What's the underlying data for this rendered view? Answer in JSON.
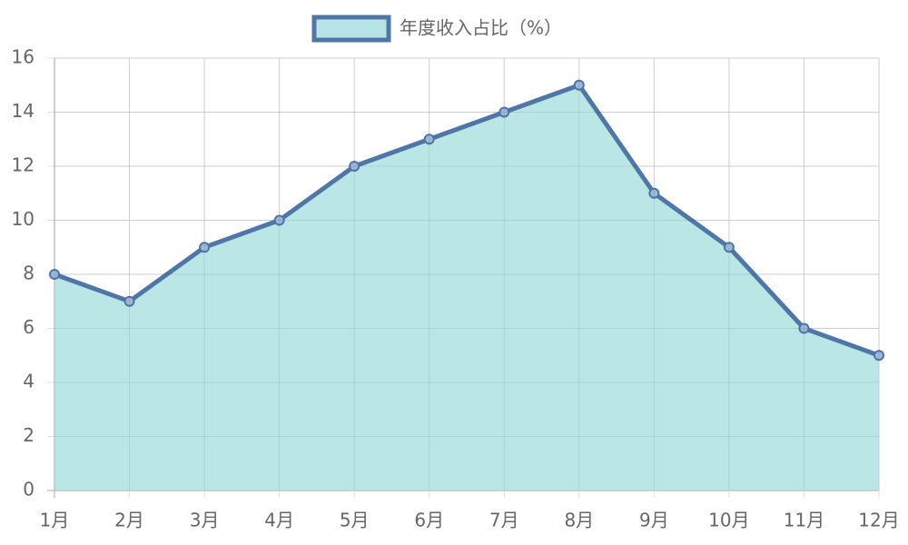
{
  "chart_data": {
    "type": "area",
    "categories": [
      "1月",
      "2月",
      "3月",
      "4月",
      "5月",
      "6月",
      "7月",
      "8月",
      "9月",
      "10月",
      "11月",
      "12月"
    ],
    "series": [
      {
        "name": "年度收入占比（%）",
        "color": "#4e76a6",
        "fill": "#b7e5e5",
        "values": [
          8,
          7,
          9,
          10,
          12,
          13,
          14,
          15,
          11,
          9,
          6,
          5
        ]
      }
    ],
    "ylim": [
      0,
      16
    ],
    "yticks": [
      0,
      2,
      4,
      6,
      8,
      10,
      12,
      14,
      16
    ],
    "grid": true,
    "legend": "top"
  }
}
